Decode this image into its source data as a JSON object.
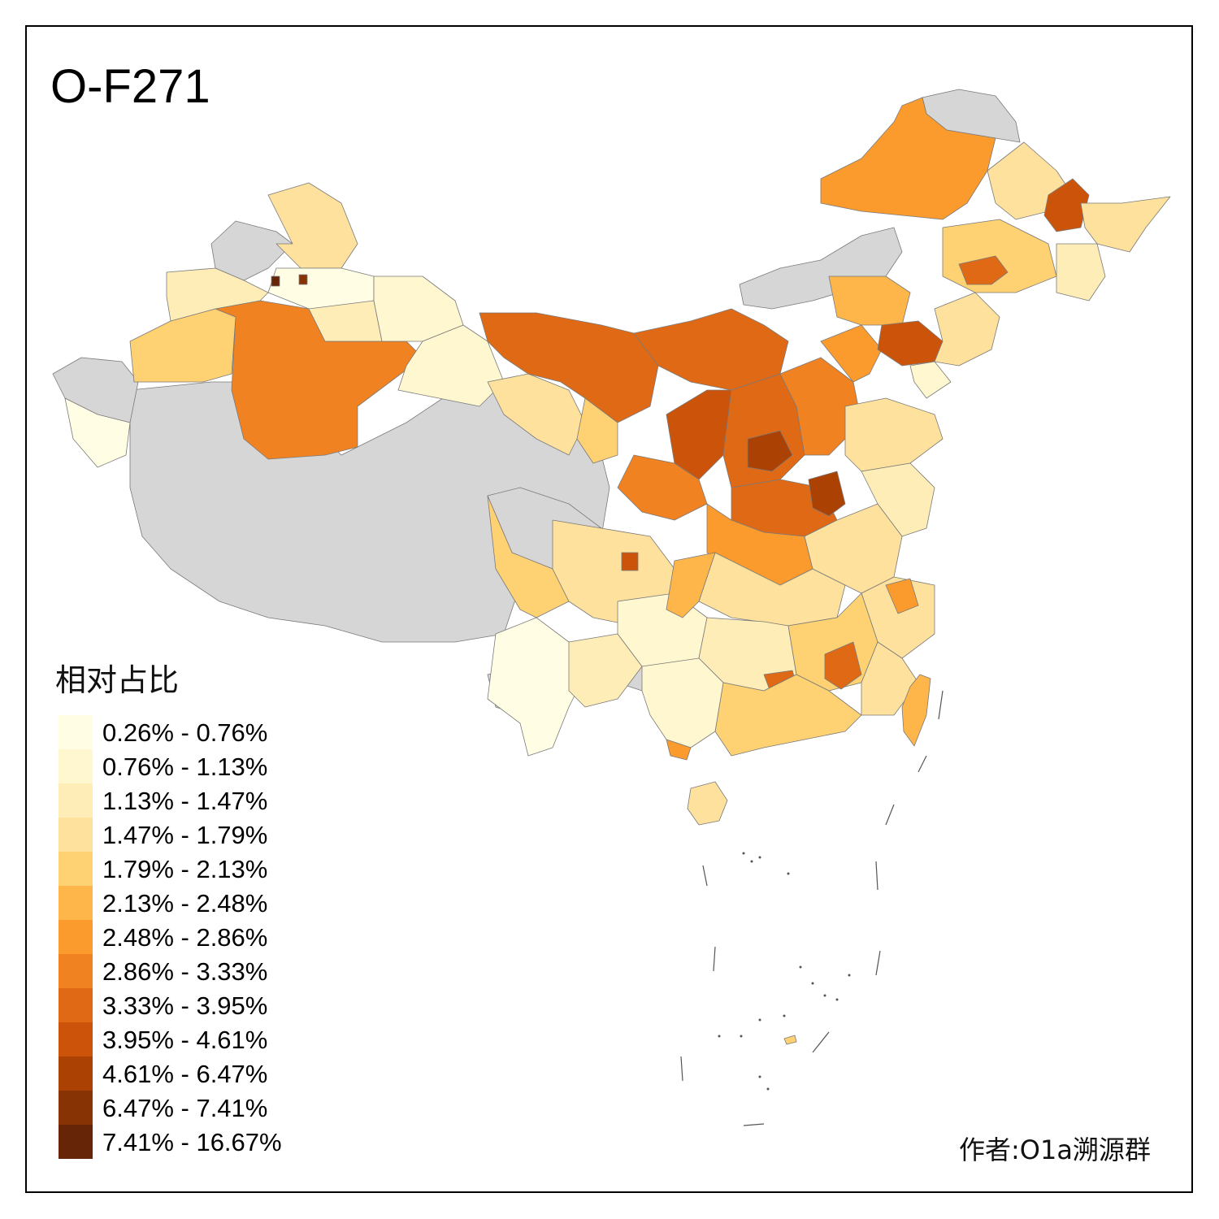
{
  "title": "O-F271",
  "legend": {
    "title": "相对占比",
    "classes": [
      {
        "label": "0.26% - 0.76%",
        "color": "#FFFEE5"
      },
      {
        "label": "0.76% - 1.13%",
        "color": "#FFF7CF"
      },
      {
        "label": "1.13% - 1.47%",
        "color": "#FEEDB6"
      },
      {
        "label": "1.47% - 1.79%",
        "color": "#FEE19C"
      },
      {
        "label": "1.79% - 2.13%",
        "color": "#FED172"
      },
      {
        "label": "2.13% - 2.48%",
        "color": "#FEB54A"
      },
      {
        "label": "2.48% - 2.86%",
        "color": "#FB9B2E"
      },
      {
        "label": "2.86% - 3.33%",
        "color": "#F08222"
      },
      {
        "label": "3.33% - 3.95%",
        "color": "#E06915"
      },
      {
        "label": "3.95% - 4.61%",
        "color": "#CC540A"
      },
      {
        "label": "4.61% - 6.47%",
        "color": "#AB4204"
      },
      {
        "label": "6.47% - 7.41%",
        "color": "#873304"
      },
      {
        "label": "7.41% - 16.67%",
        "color": "#662506"
      }
    ]
  },
  "no_data_color": "#D6D6D6",
  "author": "作者:O1a溯源群"
}
